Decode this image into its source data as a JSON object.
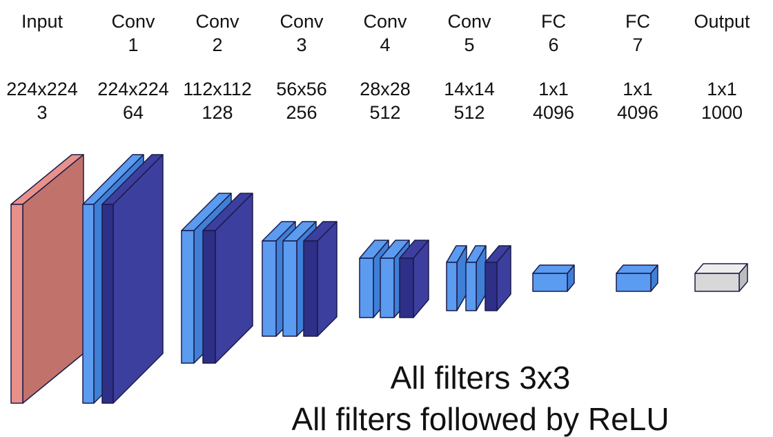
{
  "layers": [
    {
      "name_line1": "Input",
      "name_line2": "",
      "size": "224x224",
      "channels": "3"
    },
    {
      "name_line1": "Conv",
      "name_line2": "1",
      "size": "224x224",
      "channels": "64"
    },
    {
      "name_line1": "Conv",
      "name_line2": "2",
      "size": "112x112",
      "channels": "128"
    },
    {
      "name_line1": "Conv",
      "name_line2": "3",
      "size": "56x56",
      "channels": "256"
    },
    {
      "name_line1": "Conv",
      "name_line2": "4",
      "size": "28x28",
      "channels": "512"
    },
    {
      "name_line1": "Conv",
      "name_line2": "5",
      "size": "14x14",
      "channels": "512"
    },
    {
      "name_line1": "FC",
      "name_line2": "6",
      "size": "1x1",
      "channels": "4096"
    },
    {
      "name_line1": "FC",
      "name_line2": "7",
      "size": "1x1",
      "channels": "4096"
    },
    {
      "name_line1": "Output",
      "name_line2": "",
      "size": "1x1",
      "channels": "1000"
    }
  ],
  "captions": {
    "line1": "All filters 3x3",
    "line2": "All filters followed by ReLU"
  },
  "colors": {
    "input_front": "#e8918a",
    "input_side": "#c0726b",
    "conv_light_front": "#5b9bf0",
    "conv_light_side": "#3f7fd6",
    "conv_dark_front": "#2e2f86",
    "conv_dark_side": "#3d3f9e",
    "output_front": "#d8d8d8",
    "stroke": "#1a1a4a"
  }
}
